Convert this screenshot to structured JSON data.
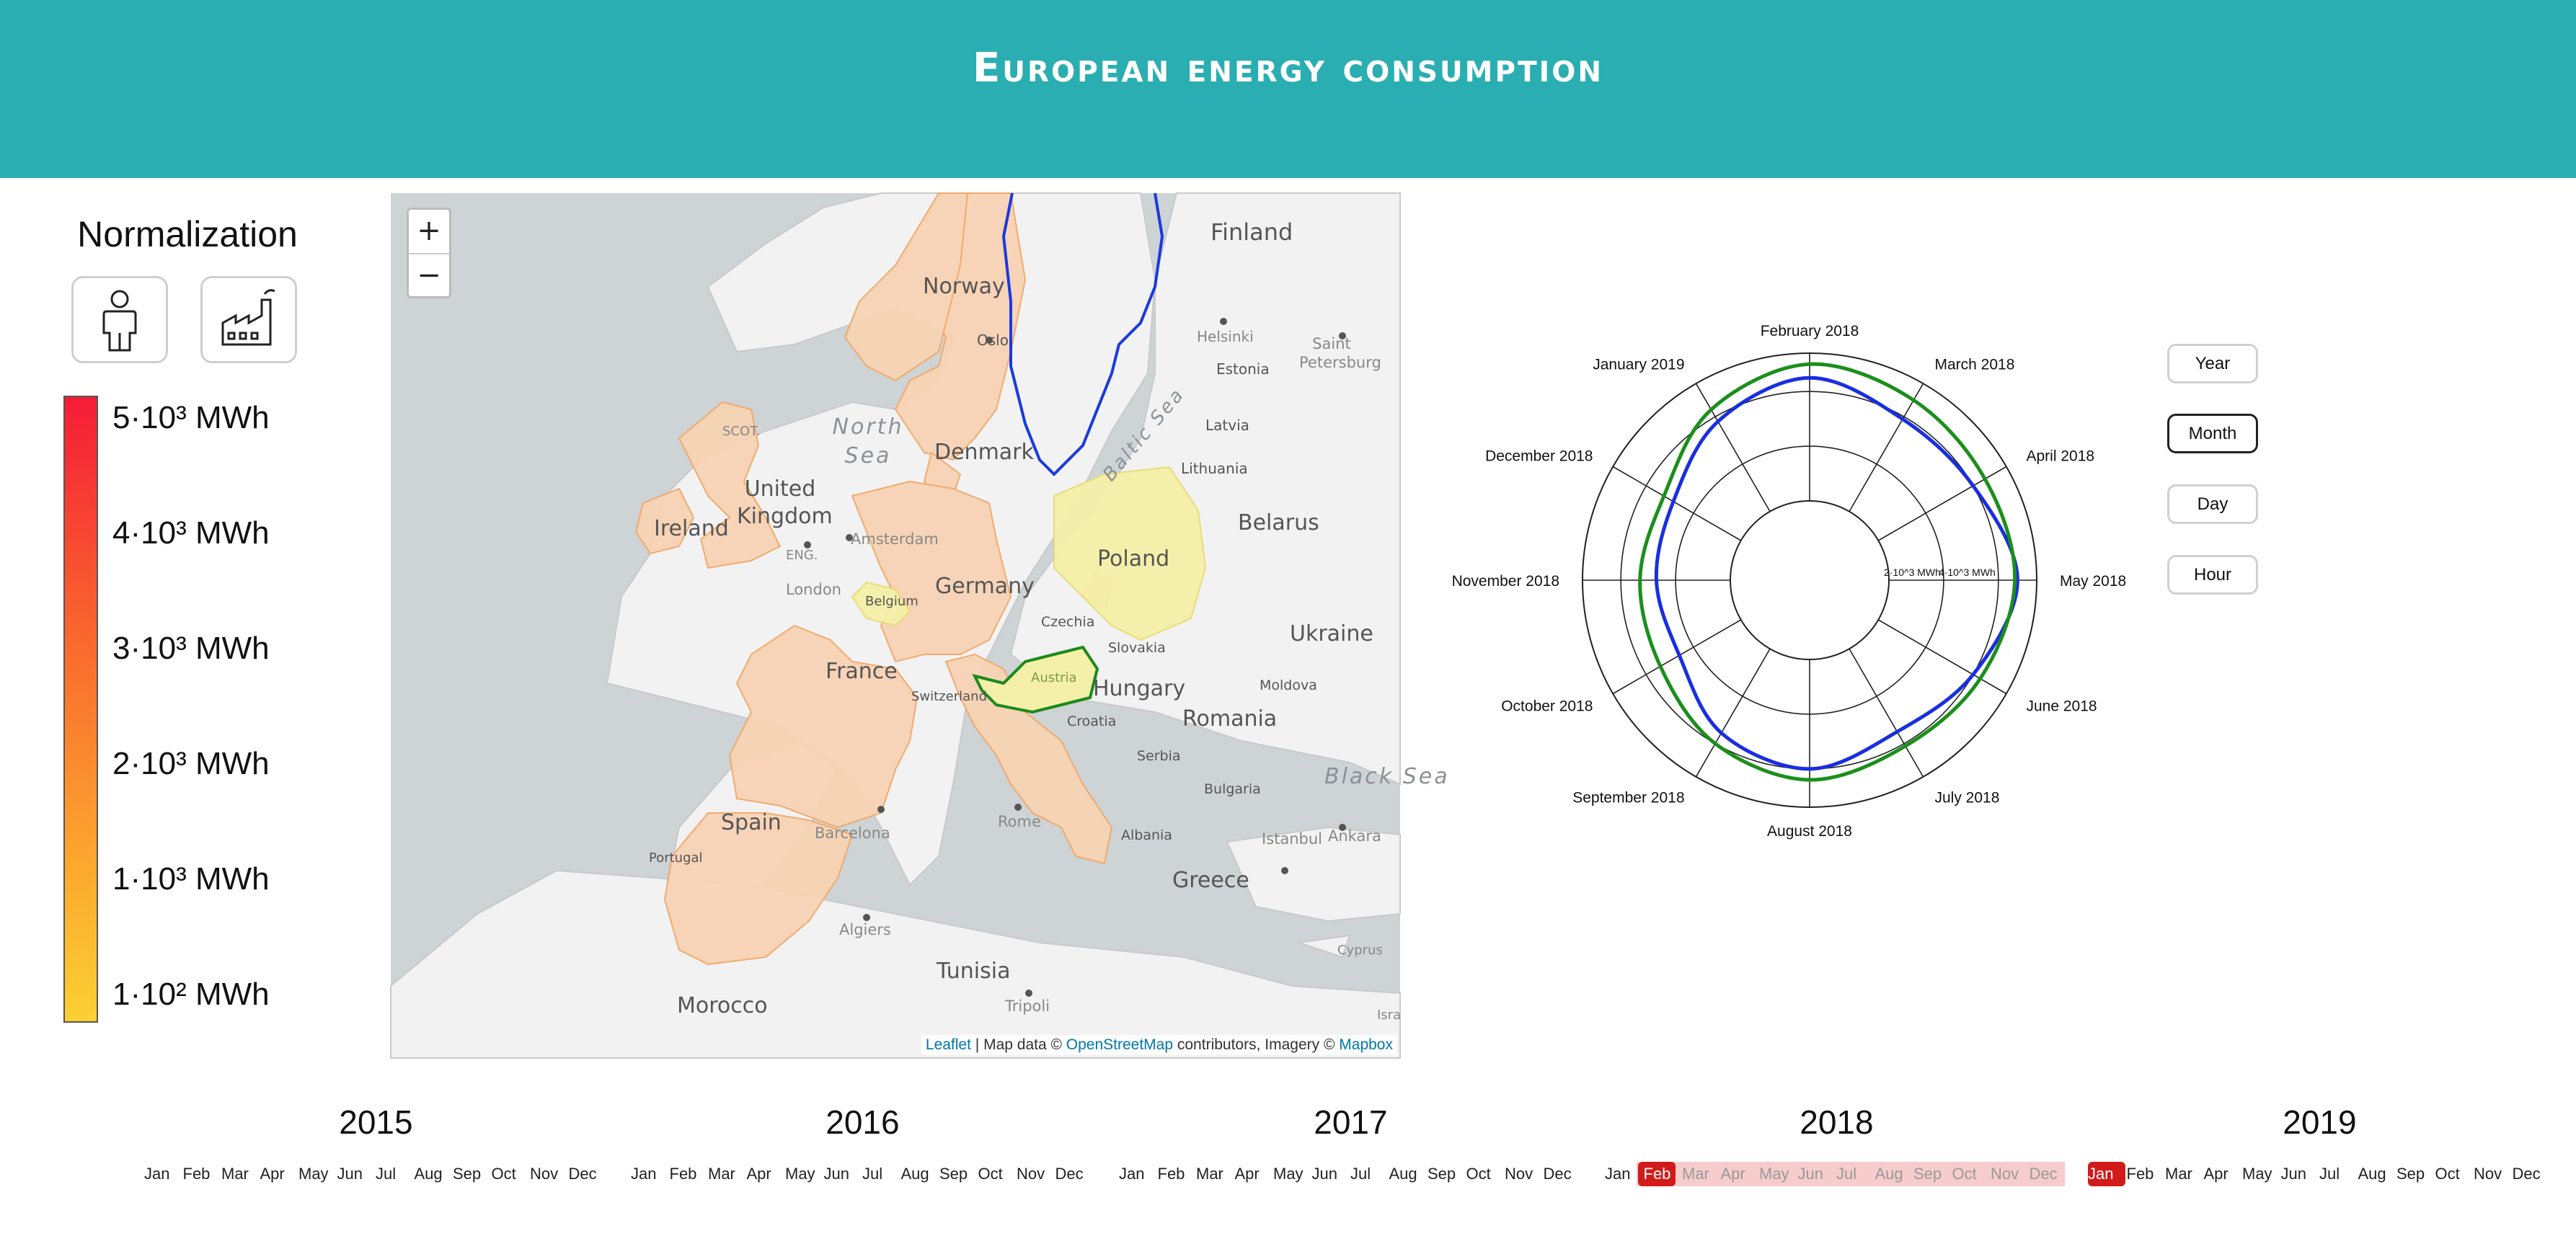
{
  "header": {
    "title": "European energy consumption"
  },
  "normalization": {
    "title": "Normalization",
    "buttons": [
      {
        "name": "per-capita",
        "icon": "person-icon"
      },
      {
        "name": "per-industry",
        "icon": "factory-icon"
      }
    ]
  },
  "legend": {
    "labels": [
      "5·10³ MWh",
      "4·10³ MWh",
      "3·10³ MWh",
      "2·10³ MWh",
      "1·10³ MWh",
      "1·10² MWh"
    ],
    "colors": {
      "top": "#f51c36",
      "middle": "#fa6a2e",
      "bottom": "#fcd033"
    }
  },
  "map": {
    "zoom_in": "+",
    "zoom_out": "−",
    "labels": {
      "finland": "Finland",
      "norway": "Norway",
      "oslo": "Oslo",
      "helsinki": "Helsinki",
      "saint_petersburg": "Saint Petersburg",
      "estonia": "Estonia",
      "latvia": "Latvia",
      "lithuania": "Lithuania",
      "north_sea": "North Sea",
      "baltic_sea": "Baltic Sea",
      "denmark": "Denmark",
      "scot": "SCOT.",
      "united_kingdom": "United Kingdom",
      "ireland": "Ireland",
      "eng": "ENG.",
      "amsterdam": "Amsterdam",
      "london": "London",
      "poland": "Poland",
      "belarus": "Belarus",
      "germany": "Germany",
      "belgium": "Belgium",
      "czechia": "Czechia",
      "ukraine": "Ukraine",
      "slovakia": "Slovakia",
      "austria": "Austria",
      "france": "France",
      "switzerland": "Switzerland",
      "hungary": "Hungary",
      "moldova": "Moldova",
      "croatia": "Croatia",
      "romania": "Romania",
      "serbia": "Serbia",
      "black_sea": "Black Sea",
      "bulgaria": "Bulgaria",
      "spain": "Spain",
      "barcelona": "Barcelona",
      "rome": "Rome",
      "albania": "Albania",
      "istanbul": "Istanbul",
      "ankara": "Ankara",
      "portugal": "Portugal",
      "greece": "Greece",
      "algiers": "Algiers",
      "tunisia": "Tunisia",
      "cyprus": "Cyprus",
      "morocco": "Morocco",
      "tripoli": "Tripoli",
      "israel": "Isra"
    },
    "attribution": {
      "leaflet": "Leaflet",
      "sep": " | Map data © ",
      "osm": "OpenStreetMap",
      "mid": " contributors, Imagery © ",
      "mapbox": "Mapbox"
    },
    "colors": {
      "consumption": "#f8d3b4",
      "low": "#f5f0a9",
      "selected_1": "#1a3adf",
      "selected_2": "#1b8a1b"
    }
  },
  "radar": {
    "months": [
      "February 2018",
      "March 2018",
      "April 2018",
      "May 2018",
      "June 2018",
      "July 2018",
      "August 2018",
      "September 2018",
      "October 2018",
      "November 2018",
      "December 2018",
      "January 2019"
    ],
    "axis_labels": [
      "2·10^3 MWh",
      "4·10^3 MWh"
    ],
    "colors": {
      "series_1": "#1a2ee0",
      "series_2": "#1b8f1b"
    }
  },
  "chart_data": {
    "type": "radar",
    "categories": [
      "February 2018",
      "March 2018",
      "April 2018",
      "May 2018",
      "June 2018",
      "July 2018",
      "August 2018",
      "September 2018",
      "October 2018",
      "November 2018",
      "December 2018",
      "January 2019"
    ],
    "axis_ticks": [
      2000,
      4000
    ],
    "series": [
      {
        "values": [
          4500,
          3900,
          4000,
          4700,
          4000,
          3500,
          4000,
          3550,
          2600,
          2700,
          2850,
          3800
        ]
      },
      {
        "values": [
          5000,
          4700,
          4500,
          4600,
          4300,
          4100,
          4400,
          4000,
          3400,
          3300,
          3250,
          4300
        ]
      }
    ]
  },
  "granularity": [
    "Year",
    "Month",
    "Day",
    "Hour"
  ],
  "granularity_active": "Month",
  "timeline": {
    "years": [
      "2015",
      "2016",
      "2017",
      "2018",
      "2019"
    ],
    "months": [
      "Jan",
      "Feb",
      "Mar",
      "Apr",
      "May",
      "Jun",
      "Jul",
      "Aug",
      "Sep",
      "Oct",
      "Nov",
      "Dec"
    ],
    "selected_start": "Feb 2018",
    "selected_end": "Jan 2019",
    "colors": {
      "range": "#f7cccc",
      "endpoint": "#d11b1b"
    }
  }
}
